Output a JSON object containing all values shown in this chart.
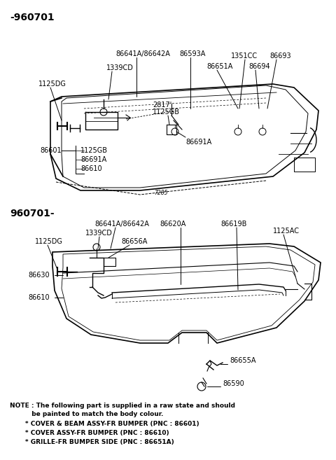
{
  "background_color": "#ffffff",
  "section1_label": "-960701",
  "section2_label": "960701-",
  "note_line1": "NOTE : The following part is supplied in a raw state and should",
  "note_line2": "          be painted to match the body colour.",
  "note_line3": "       * COVER & BEAM ASSY-FR BUMPER (PNC : 86601)",
  "note_line4": "       * COVER ASSY-FR BUMPER (PNC : 86610)",
  "note_line5": "       * GRILLE-FR BUMPER SIDE (PNC : 86651A)"
}
